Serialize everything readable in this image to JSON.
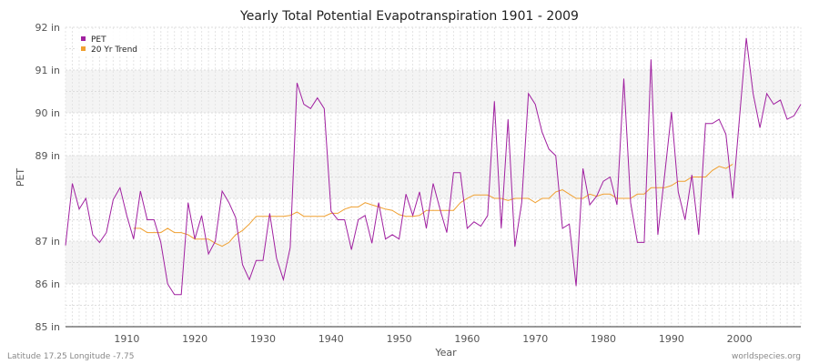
{
  "chart_data": {
    "type": "line",
    "title": "Yearly Total Potential Evapotranspiration 1901 - 2009",
    "xlabel": "Year",
    "ylabel": "PET",
    "xlim": [
      1901,
      2009
    ],
    "ylim": [
      85,
      92
    ],
    "y_ticks": [
      "85 in",
      "86 in",
      "87 in",
      "89 in",
      "90 in",
      "91 in",
      "92 in"
    ],
    "x_ticks": [
      1910,
      1920,
      1930,
      1940,
      1950,
      1960,
      1970,
      1980,
      1990,
      2000
    ],
    "grid": true,
    "legend": "top-left",
    "series": [
      {
        "name": "PET",
        "color": "#a020a0",
        "x": [
          1901,
          1902,
          1903,
          1904,
          1905,
          1906,
          1907,
          1908,
          1909,
          1910,
          1911,
          1912,
          1913,
          1914,
          1915,
          1916,
          1917,
          1918,
          1919,
          1920,
          1921,
          1922,
          1923,
          1924,
          1925,
          1926,
          1927,
          1928,
          1929,
          1930,
          1931,
          1932,
          1933,
          1934,
          1935,
          1936,
          1937,
          1938,
          1939,
          1940,
          1941,
          1942,
          1943,
          1944,
          1945,
          1946,
          1947,
          1948,
          1949,
          1950,
          1951,
          1952,
          1953,
          1954,
          1955,
          1956,
          1957,
          1958,
          1959,
          1960,
          1961,
          1962,
          1963,
          1964,
          1965,
          1966,
          1967,
          1968,
          1969,
          1970,
          1971,
          1972,
          1973,
          1974,
          1975,
          1976,
          1977,
          1978,
          1979,
          1980,
          1981,
          1982,
          1983,
          1984,
          1985,
          1986,
          1987,
          1988,
          1989,
          1990,
          1991,
          1992,
          1993,
          1994,
          1995,
          1996,
          1997,
          1998,
          1999,
          2000,
          2001,
          2002,
          2003,
          2004,
          2005,
          2006,
          2007,
          2008,
          2009
        ],
        "values": [
          86.9,
          88.35,
          87.75,
          88.0,
          87.15,
          86.97,
          87.2,
          87.97,
          88.25,
          87.6,
          87.05,
          88.17,
          87.5,
          87.5,
          86.97,
          86.0,
          85.75,
          85.75,
          87.9,
          87.05,
          87.6,
          86.7,
          87.0,
          88.17,
          87.9,
          87.55,
          86.45,
          86.1,
          86.55,
          86.55,
          87.65,
          86.6,
          86.1,
          86.85,
          90.7,
          90.2,
          90.1,
          90.35,
          90.1,
          87.7,
          87.5,
          87.5,
          86.8,
          87.5,
          87.6,
          86.95,
          87.9,
          87.05,
          87.15,
          87.05,
          88.1,
          87.6,
          88.15,
          87.3,
          88.35,
          87.75,
          87.2,
          88.6,
          88.6,
          87.3,
          87.45,
          87.35,
          87.6,
          90.27,
          87.3,
          89.85,
          86.87,
          87.9,
          90.45,
          90.2,
          89.55,
          89.15,
          89.0,
          87.3,
          87.4,
          85.95,
          88.7,
          87.85,
          88.05,
          88.4,
          88.5,
          87.85,
          90.8,
          87.9,
          86.97,
          86.97,
          91.25,
          87.15,
          88.55,
          90.02,
          88.15,
          87.5,
          88.55,
          87.15,
          89.75,
          89.75,
          89.85,
          89.5,
          88.0,
          89.9,
          91.75,
          90.45,
          89.65,
          90.45,
          90.2,
          90.3,
          89.85,
          89.93,
          90.2
        ]
      },
      {
        "name": "20 Yr Trend",
        "color": "#f0a030",
        "x": [
          1911,
          1912,
          1913,
          1914,
          1915,
          1916,
          1917,
          1918,
          1919,
          1920,
          1921,
          1922,
          1923,
          1924,
          1925,
          1926,
          1927,
          1928,
          1929,
          1930,
          1931,
          1932,
          1933,
          1934,
          1935,
          1936,
          1937,
          1938,
          1939,
          1940,
          1941,
          1942,
          1943,
          1944,
          1945,
          1946,
          1947,
          1948,
          1949,
          1950,
          1951,
          1952,
          1953,
          1954,
          1955,
          1956,
          1957,
          1958,
          1959,
          1960,
          1961,
          1962,
          1963,
          1964,
          1965,
          1966,
          1967,
          1968,
          1969,
          1970,
          1971,
          1972,
          1973,
          1974,
          1975,
          1976,
          1977,
          1978,
          1979,
          1980,
          1981,
          1982,
          1983,
          1984,
          1985,
          1986,
          1987,
          1988,
          1989,
          1990,
          1991,
          1992,
          1993,
          1994,
          1995,
          1996,
          1997,
          1998,
          1999
        ],
        "values": [
          87.3,
          87.3,
          87.2,
          87.2,
          87.2,
          87.3,
          87.2,
          87.2,
          87.15,
          87.05,
          87.05,
          87.05,
          86.95,
          86.88,
          86.97,
          87.15,
          87.25,
          87.4,
          87.58,
          87.58,
          87.58,
          87.58,
          87.58,
          87.6,
          87.68,
          87.58,
          87.58,
          87.58,
          87.58,
          87.65,
          87.65,
          87.75,
          87.8,
          87.8,
          87.9,
          87.85,
          87.8,
          87.75,
          87.72,
          87.62,
          87.58,
          87.58,
          87.6,
          87.72,
          87.72,
          87.72,
          87.72,
          87.72,
          87.9,
          88.0,
          88.08,
          88.08,
          88.08,
          88.0,
          88.0,
          87.95,
          88.0,
          88.0,
          88.0,
          87.9,
          88.0,
          88.0,
          88.15,
          88.2,
          88.1,
          88.0,
          88.0,
          88.1,
          88.05,
          88.1,
          88.1,
          88.0,
          88.0,
          88.0,
          88.1,
          88.1,
          88.25,
          88.25,
          88.25,
          88.3,
          88.4,
          88.4,
          88.5,
          88.5,
          88.5,
          88.65,
          88.75,
          88.7,
          88.8
        ]
      }
    ]
  },
  "footer": {
    "left": "Latitude 17.25 Longitude -7.75",
    "right": "worldspecies.org"
  }
}
